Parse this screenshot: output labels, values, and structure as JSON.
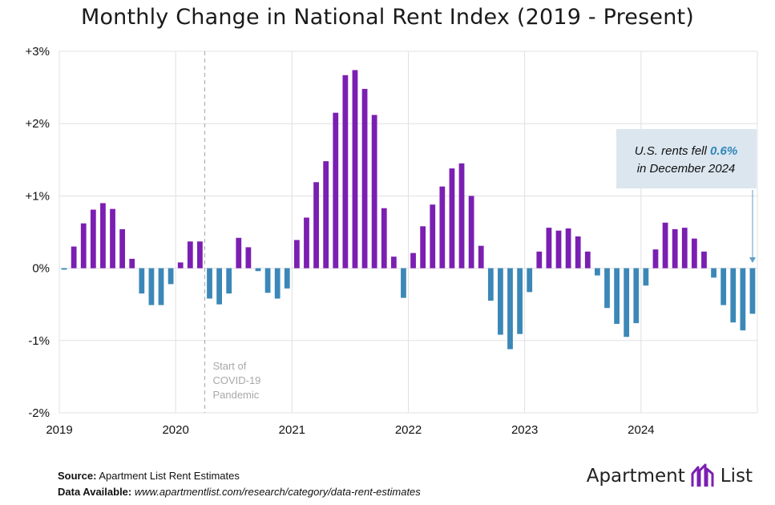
{
  "chart_data": {
    "type": "bar",
    "title": "Monthly Change in National Rent Index (2019 - Present)",
    "ylim": [
      -2,
      3
    ],
    "y_ticks": [
      -2,
      -1,
      0,
      1,
      2,
      3
    ],
    "y_tick_labels": [
      "-2%",
      "-1%",
      "0%",
      "+1%",
      "+2%",
      "+3%"
    ],
    "x_tick_labels": [
      "2019",
      "2020",
      "2021",
      "2022",
      "2023",
      "2024"
    ],
    "grid": true,
    "start": "2019-01",
    "series": [
      {
        "values": [
          -0.02,
          0.3,
          0.62,
          0.81,
          0.9,
          0.82,
          0.54,
          0.13,
          -0.35,
          -0.51,
          -0.51,
          -0.22,
          0.08,
          0.37,
          0.37,
          -0.42,
          -0.5,
          -0.35,
          0.42,
          0.29,
          -0.04,
          -0.34,
          -0.42,
          -0.28,
          0.39,
          0.7,
          1.19,
          1.48,
          2.15,
          2.67,
          2.74,
          2.48,
          2.12,
          0.83,
          0.16,
          -0.41,
          0.21,
          0.58,
          0.88,
          1.13,
          1.38,
          1.45,
          1.0,
          0.31,
          -0.45,
          -0.92,
          -1.12,
          -0.91,
          -0.33,
          0.23,
          0.56,
          0.52,
          0.55,
          0.44,
          0.23,
          -0.1,
          -0.55,
          -0.77,
          -0.95,
          -0.76,
          -0.24,
          0.26,
          0.63,
          0.54,
          0.56,
          0.41,
          0.23,
          -0.13,
          -0.51,
          -0.75,
          -0.86,
          -0.63
        ]
      }
    ],
    "colors": {
      "positive": "#7b1fb2",
      "negative": "#3b88b8"
    },
    "annotations": {
      "covid_line_at": "2020-04",
      "covid_label": [
        "Start of",
        "COVID-19",
        "Pandemic"
      ],
      "callout_prefix": "U.S. rents fell ",
      "callout_value": "0.6%",
      "callout_line2": "in December 2024"
    }
  },
  "footer": {
    "source_label": "Source:",
    "source_text": "Apartment List Rent Estimates",
    "data_label": "Data Available:",
    "data_url": "www.apartmentlist.com/research/category/data-rent-estimates"
  },
  "logo": {
    "word1": "Apartment",
    "word2": "List"
  }
}
